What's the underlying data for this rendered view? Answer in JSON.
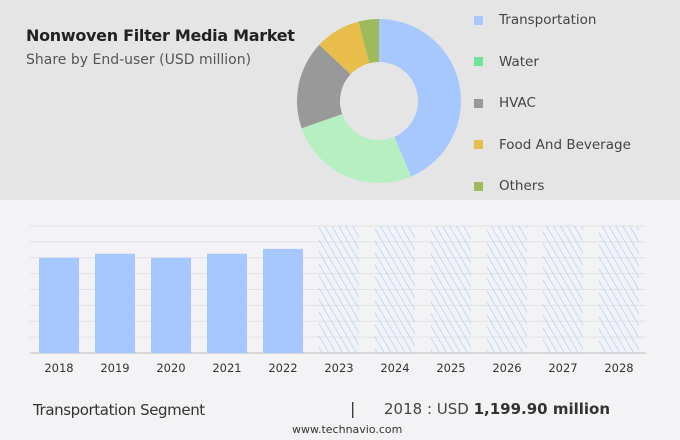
{
  "title": "Nonwoven Filter Media Market",
  "subtitle": "Share by End-user (USD million)",
  "legend": [
    {
      "label": "Transportation",
      "color": "#a6c8ff"
    },
    {
      "label": "Water",
      "color": "#6ee395"
    },
    {
      "label": "HVAC",
      "color": "#999999"
    },
    {
      "label": "Food And Beverage",
      "color": "#e8bd4c"
    },
    {
      "label": "Others",
      "color": "#9dbb5c"
    }
  ],
  "footer": {
    "segment": "Transportation Segment",
    "separator": "|",
    "year_prefix": "2018 : USD ",
    "value": "1,199.90 million",
    "source": "www.technavio.com"
  },
  "chart_data": [
    {
      "type": "pie",
      "donut": true,
      "categories": [
        "Transportation",
        "Water",
        "HVAC",
        "Food And Beverage",
        "Others"
      ],
      "values": [
        43.6,
        26,
        17.4,
        9,
        4
      ],
      "colors": [
        "#a6c8ff",
        "#b6efc0",
        "#999999",
        "#e8bd4c",
        "#9dbb5c"
      ],
      "legend": "right"
    },
    {
      "type": "bar",
      "categories": [
        "2018",
        "2019",
        "2020",
        "2021",
        "2022",
        "2023",
        "2024",
        "2025",
        "2026",
        "2027",
        "2028"
      ],
      "values": [
        1199.9,
        1250,
        1200,
        1250,
        1312,
        null,
        null,
        null,
        null,
        null,
        null
      ],
      "forecast": [
        "2023",
        "2024",
        "2025",
        "2026",
        "2027",
        "2028"
      ],
      "ylim": [
        0,
        1600
      ],
      "grid": true,
      "bar_color": "#a6c8ff"
    }
  ]
}
